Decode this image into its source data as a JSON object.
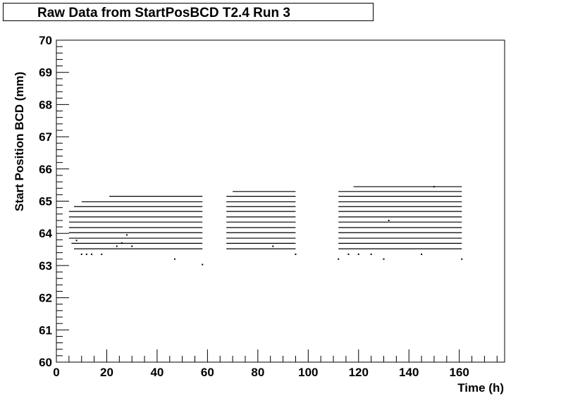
{
  "chart_data": {
    "type": "scatter",
    "title": "Raw Data from StartPosBCD T2.4 Run 3",
    "xlabel": "Time (h)",
    "ylabel": "Start Position BCD (mm)",
    "xlim": [
      0,
      178
    ],
    "ylim": [
      60,
      70
    ],
    "x_ticks": [
      0,
      20,
      40,
      60,
      80,
      100,
      120,
      140,
      160
    ],
    "y_ticks": [
      60,
      61,
      62,
      63,
      64,
      65,
      66,
      67,
      68,
      69,
      70
    ],
    "x_tick_labels": [
      "0",
      "20",
      "40",
      "60",
      "80",
      "100",
      "120",
      "140",
      "160"
    ],
    "y_tick_labels": [
      "60",
      "61",
      "62",
      "63",
      "64",
      "65",
      "66",
      "67",
      "68",
      "69",
      "70"
    ],
    "grid": false,
    "legend": false,
    "colors": {
      "marker": "#000000",
      "frame": "#000000",
      "background": "#ffffff"
    },
    "segments": [
      {
        "x_range": [
          5,
          58
        ],
        "levels": [
          {
            "y": 65.15,
            "x_start": 21
          },
          {
            "y": 64.98,
            "x_start": 10
          },
          {
            "y": 64.83,
            "x_start": 7
          },
          {
            "y": 64.68,
            "x_start": 5
          },
          {
            "y": 64.51,
            "x_start": 5
          },
          {
            "y": 64.35,
            "x_start": 5
          },
          {
            "y": 64.18,
            "x_start": 5
          },
          {
            "y": 64.02,
            "x_start": 5
          },
          {
            "y": 63.85,
            "x_start": 5
          },
          {
            "y": 63.69,
            "x_start": 6
          },
          {
            "y": 63.52,
            "x_start": 7
          }
        ],
        "scattered_points": [
          [
            8,
            63.78
          ],
          [
            10,
            63.35
          ],
          [
            12,
            63.35
          ],
          [
            14,
            63.35
          ],
          [
            18,
            63.35
          ],
          [
            24,
            63.6
          ],
          [
            26,
            63.7
          ],
          [
            28,
            63.95
          ],
          [
            30,
            63.6
          ],
          [
            47,
            63.2
          ],
          [
            58,
            63.03
          ]
        ]
      },
      {
        "x_range": [
          67.5,
          95
        ],
        "levels": [
          {
            "y": 65.3,
            "x_start": 70
          },
          {
            "y": 65.15,
            "x_start": 67.5
          },
          {
            "y": 64.98,
            "x_start": 67.5
          },
          {
            "y": 64.83,
            "x_start": 67.5
          },
          {
            "y": 64.68,
            "x_start": 67.5
          },
          {
            "y": 64.51,
            "x_start": 67.5
          },
          {
            "y": 64.35,
            "x_start": 67.5
          },
          {
            "y": 64.18,
            "x_start": 67.5
          },
          {
            "y": 64.02,
            "x_start": 67.5
          },
          {
            "y": 63.85,
            "x_start": 67.5
          },
          {
            "y": 63.69,
            "x_start": 67.5
          },
          {
            "y": 63.52,
            "x_start": 67.5
          }
        ],
        "scattered_points": [
          [
            95,
            63.35
          ],
          [
            86,
            63.6
          ]
        ]
      },
      {
        "x_range": [
          112,
          161
        ],
        "levels": [
          {
            "y": 65.45,
            "x_start": 118
          },
          {
            "y": 65.3,
            "x_start": 112
          },
          {
            "y": 65.15,
            "x_start": 112
          },
          {
            "y": 64.98,
            "x_start": 112
          },
          {
            "y": 64.83,
            "x_start": 112
          },
          {
            "y": 64.68,
            "x_start": 112
          },
          {
            "y": 64.51,
            "x_start": 112
          },
          {
            "y": 64.35,
            "x_start": 112
          },
          {
            "y": 64.18,
            "x_start": 112
          },
          {
            "y": 64.02,
            "x_start": 112
          },
          {
            "y": 63.85,
            "x_start": 112
          },
          {
            "y": 63.69,
            "x_start": 112
          },
          {
            "y": 63.52,
            "x_start": 112
          }
        ],
        "scattered_points": [
          [
            112,
            63.2
          ],
          [
            116,
            63.35
          ],
          [
            120,
            63.35
          ],
          [
            125,
            63.35
          ],
          [
            130,
            63.2
          ],
          [
            132,
            64.4
          ],
          [
            145,
            63.35
          ],
          [
            150,
            65.45
          ],
          [
            161,
            63.2
          ]
        ]
      }
    ]
  }
}
